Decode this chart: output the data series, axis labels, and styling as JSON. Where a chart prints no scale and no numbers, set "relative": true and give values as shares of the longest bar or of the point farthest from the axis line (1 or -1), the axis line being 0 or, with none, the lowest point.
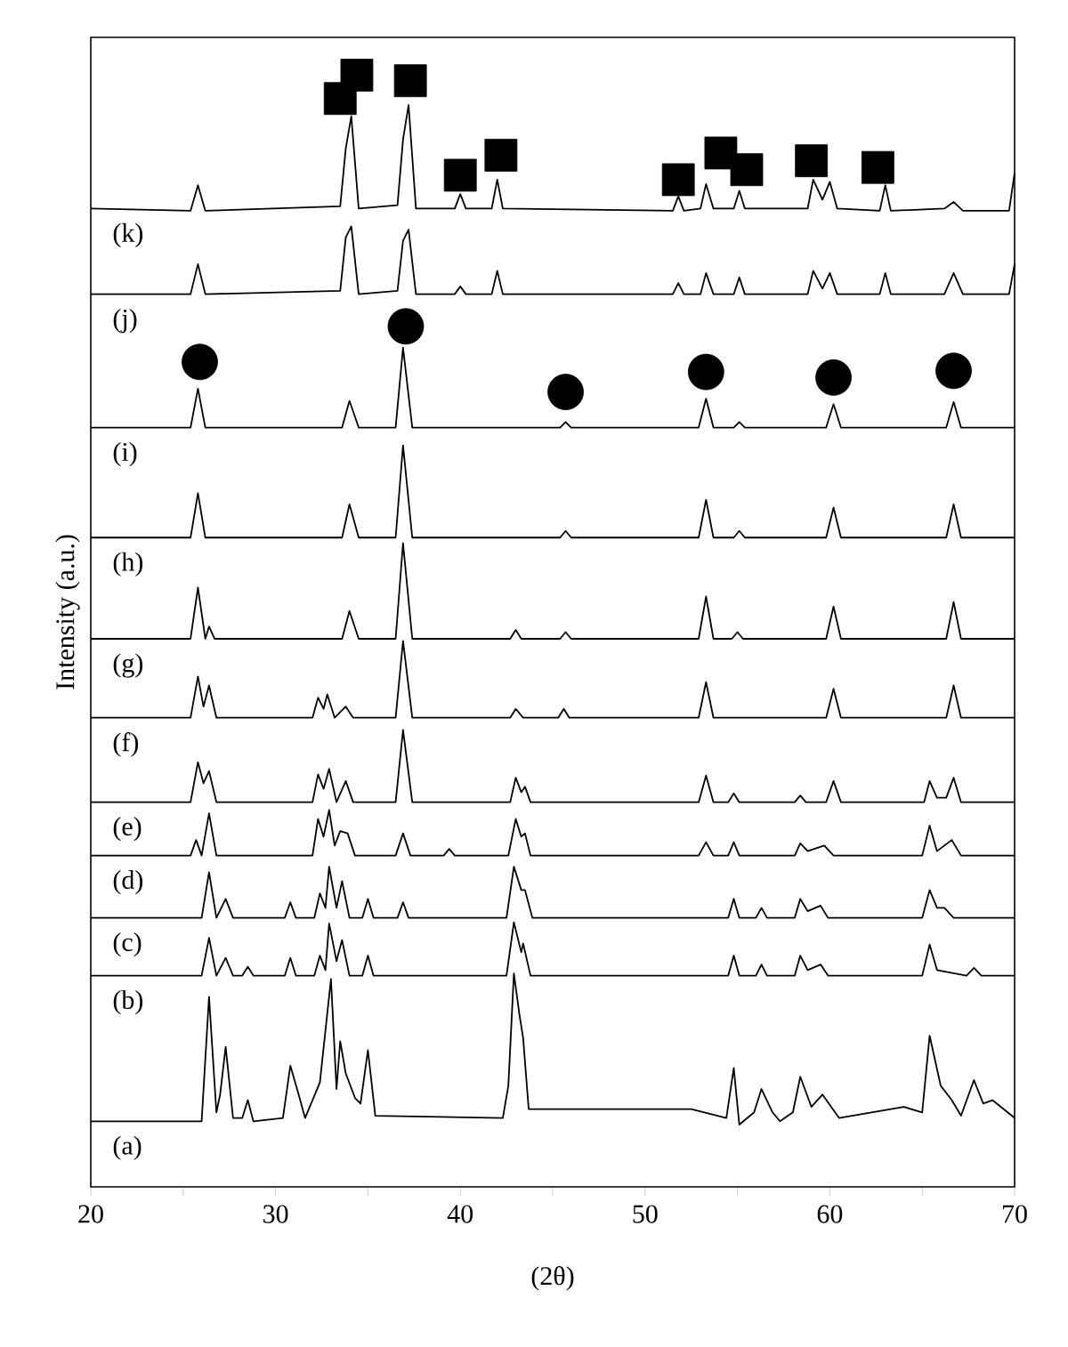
{
  "chart_data": {
    "type": "line",
    "relative": true,
    "xlabel": "(2θ)",
    "ylabel": "Intensity (a.u.)",
    "line_style": "solid",
    "xlim": [
      20,
      70
    ],
    "xticks": [
      20,
      {
        "value": 25,
        "label": null
      },
      30,
      {
        "value": 35,
        "label": null
      },
      40,
      {
        "value": 45,
        "label": null
      },
      50,
      {
        "value": 55,
        "label": null
      },
      60,
      {
        "value": 65,
        "label": null
      },
      70
    ],
    "series": [
      {
        "name": "(a)",
        "color": "#000000",
        "x": [
          20,
          26.0,
          26.4,
          26.8,
          27.0,
          27.3,
          27.7,
          28.2,
          28.5,
          28.8,
          30.4,
          30.8,
          31.2,
          31.6,
          32.4,
          33.0,
          33.3,
          33.5,
          33.8,
          34.3,
          34.6,
          35.0,
          35.4,
          42.3,
          42.6,
          42.9,
          43.2,
          43.4,
          43.7,
          47.2,
          52.5,
          54.4,
          54.8,
          55.1,
          55.9,
          56.3,
          56.9,
          57.3,
          58.0,
          58.4,
          59.0,
          59.6,
          60.5,
          64.0,
          65.0,
          65.4,
          66.0,
          66.6,
          67.1,
          67.8,
          68.3,
          68.8,
          70
        ],
        "values": [
          0.059,
          0.059,
          0.171,
          0.067,
          0.083,
          0.126,
          0.062,
          0.062,
          0.078,
          0.059,
          0.062,
          0.109,
          0.086,
          0.062,
          0.094,
          0.187,
          0.088,
          0.131,
          0.102,
          0.08,
          0.075,
          0.123,
          0.064,
          0.062,
          0.091,
          0.192,
          0.155,
          0.134,
          0.07,
          0.07,
          0.07,
          0.062,
          0.107,
          0.056,
          0.067,
          0.088,
          0.067,
          0.059,
          0.067,
          0.099,
          0.072,
          0.083,
          0.062,
          0.072,
          0.067,
          0.136,
          0.091,
          0.078,
          0.064,
          0.096,
          0.075,
          0.078,
          0.062
        ]
      },
      {
        "name": "(b)",
        "color": "#000000",
        "x": [
          20,
          26.0,
          26.4,
          26.8,
          27.3,
          27.7,
          28.2,
          28.5,
          28.8,
          30.5,
          30.8,
          31.1,
          32.1,
          32.4,
          32.7,
          32.9,
          33.3,
          33.6,
          34.0,
          34.7,
          35.0,
          35.3,
          42.5,
          42.9,
          43.3,
          43.4,
          43.8,
          54.5,
          54.8,
          55.1,
          56.0,
          56.3,
          56.6,
          58.1,
          58.4,
          58.8,
          59.5,
          59.9,
          65.0,
          65.4,
          65.8,
          67.4,
          67.8,
          68.2,
          70
        ],
        "values": [
          0.19,
          0.19,
          0.224,
          0.19,
          0.206,
          0.19,
          0.19,
          0.198,
          0.19,
          0.19,
          0.206,
          0.19,
          0.19,
          0.208,
          0.195,
          0.237,
          0.203,
          0.222,
          0.19,
          0.19,
          0.208,
          0.19,
          0.19,
          0.238,
          0.211,
          0.219,
          0.19,
          0.19,
          0.208,
          0.19,
          0.19,
          0.2,
          0.19,
          0.19,
          0.208,
          0.195,
          0.2,
          0.19,
          0.19,
          0.218,
          0.195,
          0.19,
          0.197,
          0.19,
          0.19
        ]
      },
      {
        "name": "(c)",
        "color": "#000000",
        "x": [
          20,
          26.0,
          26.4,
          26.8,
          27.3,
          27.7,
          30.5,
          30.8,
          31.1,
          32.1,
          32.4,
          32.7,
          32.9,
          33.3,
          33.6,
          34.0,
          34.7,
          35.0,
          35.3,
          36.6,
          36.9,
          37.2,
          42.5,
          42.9,
          43.3,
          43.5,
          43.9,
          54.5,
          54.8,
          55.1,
          56.0,
          56.3,
          56.6,
          58.1,
          58.4,
          58.8,
          59.5,
          59.9,
          65.0,
          65.4,
          65.8,
          66.2,
          66.7,
          70
        ],
        "values": [
          0.242,
          0.242,
          0.283,
          0.242,
          0.259,
          0.242,
          0.242,
          0.256,
          0.242,
          0.242,
          0.264,
          0.251,
          0.288,
          0.251,
          0.275,
          0.242,
          0.242,
          0.259,
          0.242,
          0.242,
          0.256,
          0.242,
          0.242,
          0.288,
          0.267,
          0.267,
          0.242,
          0.242,
          0.259,
          0.242,
          0.242,
          0.251,
          0.242,
          0.242,
          0.259,
          0.248,
          0.253,
          0.242,
          0.242,
          0.267,
          0.251,
          0.251,
          0.242,
          0.242
        ]
      },
      {
        "name": "(d)",
        "color": "#000000",
        "x": [
          20,
          25.4,
          25.7,
          26.0,
          26.4,
          26.8,
          32.0,
          32.3,
          32.6,
          32.9,
          33.2,
          33.5,
          33.9,
          34.3,
          36.5,
          36.9,
          37.3,
          39.1,
          39.4,
          39.7,
          42.6,
          43.0,
          43.3,
          43.5,
          43.8,
          52.9,
          53.3,
          53.7,
          54.5,
          54.8,
          55.1,
          58.1,
          58.4,
          58.8,
          59.7,
          60.2,
          65.0,
          65.4,
          65.8,
          66.6,
          67.1,
          70
        ],
        "values": [
          0.298,
          0.298,
          0.312,
          0.298,
          0.336,
          0.298,
          0.298,
          0.331,
          0.315,
          0.339,
          0.307,
          0.32,
          0.318,
          0.298,
          0.298,
          0.318,
          0.298,
          0.298,
          0.304,
          0.298,
          0.298,
          0.331,
          0.315,
          0.318,
          0.298,
          0.298,
          0.31,
          0.298,
          0.298,
          0.31,
          0.298,
          0.298,
          0.309,
          0.302,
          0.307,
          0.298,
          0.298,
          0.325,
          0.302,
          0.312,
          0.298,
          0.298
        ]
      },
      {
        "name": "(e)",
        "color": "#000000",
        "x": [
          20,
          25.4,
          25.8,
          26.1,
          26.4,
          26.8,
          32.0,
          32.3,
          32.6,
          32.9,
          33.3,
          33.8,
          34.2,
          36.5,
          36.9,
          37.4,
          42.7,
          43.0,
          43.3,
          43.5,
          43.8,
          52.9,
          53.3,
          53.7,
          54.5,
          54.8,
          55.1,
          58.1,
          58.4,
          58.7,
          59.8,
          60.2,
          60.6,
          65.1,
          65.4,
          65.8,
          66.3,
          66.7,
          67.1,
          70
        ],
        "values": [
          0.346,
          0.346,
          0.382,
          0.363,
          0.374,
          0.346,
          0.346,
          0.371,
          0.358,
          0.376,
          0.346,
          0.365,
          0.346,
          0.346,
          0.411,
          0.346,
          0.346,
          0.368,
          0.355,
          0.36,
          0.346,
          0.346,
          0.37,
          0.346,
          0.346,
          0.354,
          0.346,
          0.346,
          0.352,
          0.346,
          0.346,
          0.365,
          0.346,
          0.346,
          0.365,
          0.35,
          0.35,
          0.368,
          0.346,
          0.346
        ]
      },
      {
        "name": "(f)",
        "color": "#000000",
        "x": [
          20,
          25.4,
          25.8,
          26.1,
          26.4,
          26.8,
          32.0,
          32.3,
          32.6,
          32.8,
          33.2,
          33.8,
          34.2,
          36.5,
          36.9,
          37.4,
          42.7,
          43.0,
          43.4,
          45.3,
          45.6,
          45.9,
          52.9,
          53.3,
          53.7,
          59.8,
          60.2,
          60.6,
          66.3,
          66.7,
          67.1,
          70
        ],
        "values": [
          0.422,
          0.422,
          0.459,
          0.432,
          0.451,
          0.422,
          0.422,
          0.44,
          0.43,
          0.443,
          0.422,
          0.432,
          0.422,
          0.422,
          0.491,
          0.422,
          0.422,
          0.43,
          0.422,
          0.422,
          0.43,
          0.422,
          0.422,
          0.454,
          0.422,
          0.422,
          0.448,
          0.422,
          0.422,
          0.451,
          0.422,
          0.422
        ]
      },
      {
        "name": "(g)",
        "color": "#000000",
        "x": [
          20,
          25.4,
          25.8,
          26.2,
          26.4,
          26.7,
          33.6,
          34.0,
          34.5,
          36.5,
          36.9,
          37.4,
          42.7,
          43.0,
          43.3,
          45.4,
          45.7,
          46.0,
          52.9,
          53.3,
          53.7,
          54.7,
          55.0,
          55.3,
          59.8,
          60.2,
          60.6,
          66.3,
          66.7,
          67.1,
          70
        ],
        "values": [
          0.493,
          0.493,
          0.539,
          0.493,
          0.504,
          0.493,
          0.493,
          0.518,
          0.493,
          0.493,
          0.579,
          0.493,
          0.493,
          0.501,
          0.493,
          0.493,
          0.499,
          0.493,
          0.493,
          0.531,
          0.493,
          0.493,
          0.499,
          0.493,
          0.493,
          0.522,
          0.493,
          0.493,
          0.526,
          0.493,
          0.493
        ]
      },
      {
        "color": "#000000",
        "x": [
          20,
          25.4,
          25.8,
          26.2,
          33.6,
          34.0,
          34.5,
          36.5,
          36.9,
          37.4,
          45.4,
          45.7,
          46.0,
          52.9,
          53.3,
          53.7,
          54.8,
          55.1,
          55.4,
          59.8,
          60.2,
          60.6,
          66.3,
          66.7,
          67.1,
          70
        ],
        "name": "(h)",
        "values": [
          0.584,
          0.584,
          0.624,
          0.584,
          0.584,
          0.614,
          0.584,
          0.584,
          0.667,
          0.584,
          0.584,
          0.59,
          0.584,
          0.584,
          0.618,
          0.584,
          0.584,
          0.59,
          0.584,
          0.584,
          0.611,
          0.584,
          0.584,
          0.614,
          0.584,
          0.584
        ]
      },
      {
        "color": "#000000",
        "x": [
          20,
          25.4,
          25.8,
          26.2,
          33.6,
          34.0,
          34.5,
          36.5,
          36.9,
          37.4,
          45.4,
          45.7,
          46.0,
          52.9,
          53.3,
          53.7,
          54.8,
          55.1,
          55.4,
          59.8,
          60.2,
          60.6,
          66.3,
          66.7,
          67.1,
          70
        ],
        "name": "(i)",
        "values": [
          0.683,
          0.683,
          0.718,
          0.683,
          0.683,
          0.707,
          0.683,
          0.683,
          0.755,
          0.683,
          0.683,
          0.688,
          0.683,
          0.683,
          0.709,
          0.683,
          0.683,
          0.688,
          0.683,
          0.683,
          0.704,
          0.683,
          0.683,
          0.706,
          0.683,
          0.683
        ]
      },
      {
        "color": "#000000",
        "x": [
          20,
          25.4,
          25.8,
          26.2,
          33.5,
          33.8,
          34.1,
          34.5,
          36.6,
          36.9,
          37.2,
          37.6,
          39.7,
          40.0,
          40.3,
          41.7,
          42.0,
          42.3,
          51.5,
          51.8,
          52.1,
          53.0,
          53.3,
          53.7,
          54.8,
          55.1,
          55.4,
          58.8,
          59.1,
          59.6,
          60.0,
          60.4,
          62.7,
          63.0,
          63.3,
          66.2,
          66.7,
          67.2,
          69.7,
          70
        ],
        "name": "(j)",
        "values": [
          0.803,
          0.803,
          0.83,
          0.803,
          0.806,
          0.854,
          0.864,
          0.803,
          0.806,
          0.851,
          0.861,
          0.803,
          0.803,
          0.81,
          0.803,
          0.803,
          0.824,
          0.803,
          0.803,
          0.813,
          0.803,
          0.803,
          0.822,
          0.803,
          0.803,
          0.818,
          0.803,
          0.803,
          0.824,
          0.808,
          0.822,
          0.803,
          0.803,
          0.822,
          0.803,
          0.803,
          0.822,
          0.803,
          0.803,
          0.83
        ]
      },
      {
        "color": "#000000",
        "x": [
          20,
          25.4,
          25.8,
          26.2,
          33.5,
          33.8,
          34.1,
          34.5,
          36.6,
          36.9,
          37.2,
          37.6,
          39.7,
          40.0,
          40.3,
          41.7,
          42.0,
          42.3,
          51.5,
          51.8,
          52.1,
          53.0,
          53.3,
          53.7,
          54.8,
          55.1,
          55.4,
          58.8,
          59.1,
          59.6,
          60.0,
          60.4,
          62.7,
          63.0,
          63.3,
          66.2,
          66.7,
          67.2,
          69.7,
          70
        ],
        "name": "(k)",
        "values": [
          0.88,
          0.878,
          0.901,
          0.878,
          0.882,
          0.934,
          0.963,
          0.88,
          0.883,
          0.942,
          0.973,
          0.88,
          0.88,
          0.893,
          0.88,
          0.88,
          0.906,
          0.88,
          0.878,
          0.891,
          0.878,
          0.88,
          0.902,
          0.88,
          0.88,
          0.896,
          0.88,
          0.88,
          0.906,
          0.888,
          0.904,
          0.88,
          0.878,
          0.901,
          0.878,
          0.88,
          0.886,
          0.878,
          0.878,
          0.912
        ]
      },
      {
        "type": "scatter",
        "marker": "square",
        "color": "#000000",
        "x": [
          33.5,
          34.4,
          37.3,
          40.0,
          42.2,
          51.8,
          54.1,
          55.5,
          59.0,
          62.6
        ],
        "values": [
          0.979,
          1.0,
          0.995,
          0.91,
          0.928,
          0.906,
          0.93,
          0.915,
          0.923,
          0.917
        ]
      },
      {
        "type": "scatter",
        "marker": "circle",
        "color": "#000000",
        "x": [
          25.9,
          37.05,
          45.7,
          53.3,
          60.2,
          66.7
        ],
        "values": [
          0.742,
          0.774,
          0.715,
          0.733,
          0.728,
          0.734
        ]
      }
    ]
  }
}
